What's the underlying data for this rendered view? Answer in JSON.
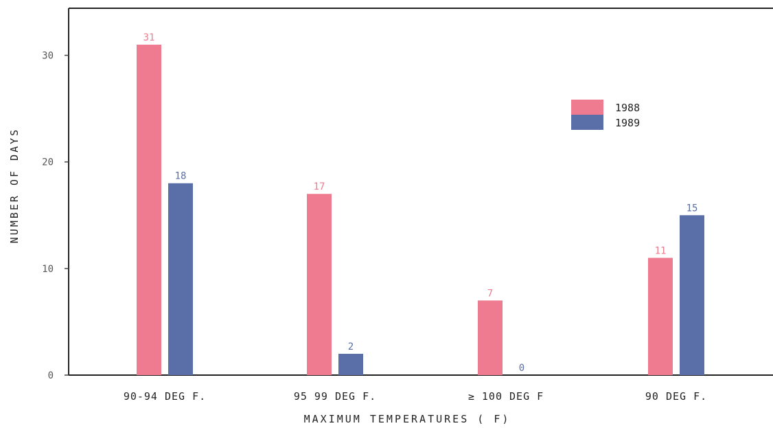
{
  "chart_data": {
    "type": "bar",
    "title": "",
    "xlabel": "MAXIMUM TEMPERATURES ( F)",
    "ylabel": "NUMBER OF DAYS",
    "categories": [
      "90-94 DEG F.",
      "95 99 DEG F.",
      "≥ 100 DEG F",
      "90 DEG F."
    ],
    "series": [
      {
        "name": "1988",
        "color": "#ee7b8f",
        "values": [
          31,
          17,
          7,
          11
        ]
      },
      {
        "name": "1989",
        "color": "#5a6fa8",
        "values": [
          18,
          2,
          0,
          15
        ]
      }
    ],
    "ylim": [
      0,
      35
    ],
    "yticks": [
      0,
      10,
      20,
      30
    ],
    "grid": false,
    "legend": "top-right"
  }
}
